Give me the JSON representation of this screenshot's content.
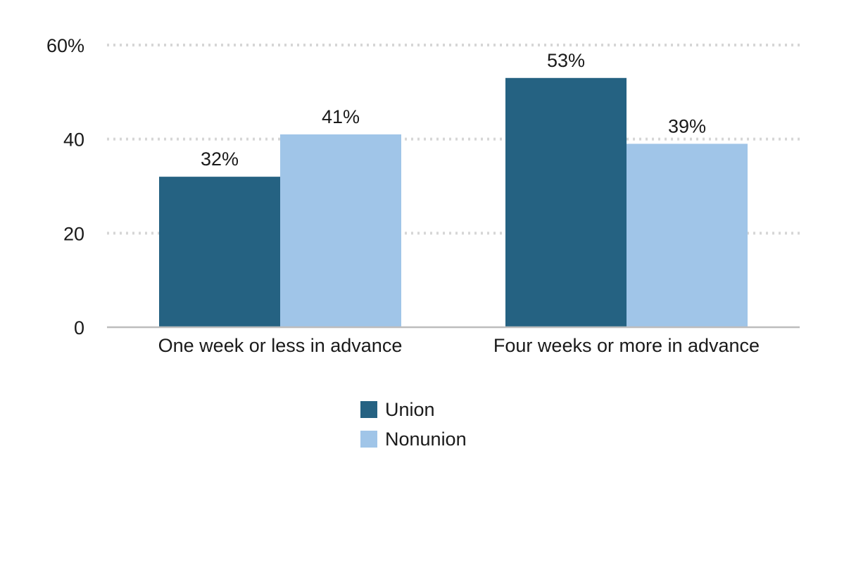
{
  "chart_data": {
    "type": "bar",
    "title": "",
    "xlabel": "",
    "ylabel": "",
    "categories": [
      "One week or less in advance",
      "Four weeks or more in advance"
    ],
    "series": [
      {
        "name": "Union",
        "values": [
          32,
          53
        ],
        "color": "#256282"
      },
      {
        "name": "Nonunion",
        "values": [
          41,
          39
        ],
        "color": "#a0c5e8"
      }
    ],
    "data_labels": [
      [
        "32%",
        "53%"
      ],
      [
        "41%",
        "39%"
      ]
    ],
    "ylim": [
      0,
      60
    ],
    "yticks": [
      0,
      20,
      40,
      60
    ],
    "ytick_labels": [
      "0",
      "20",
      "40",
      "60%"
    ],
    "grid": true,
    "grid_style": "dotted",
    "legend_position": "bottom-center"
  }
}
